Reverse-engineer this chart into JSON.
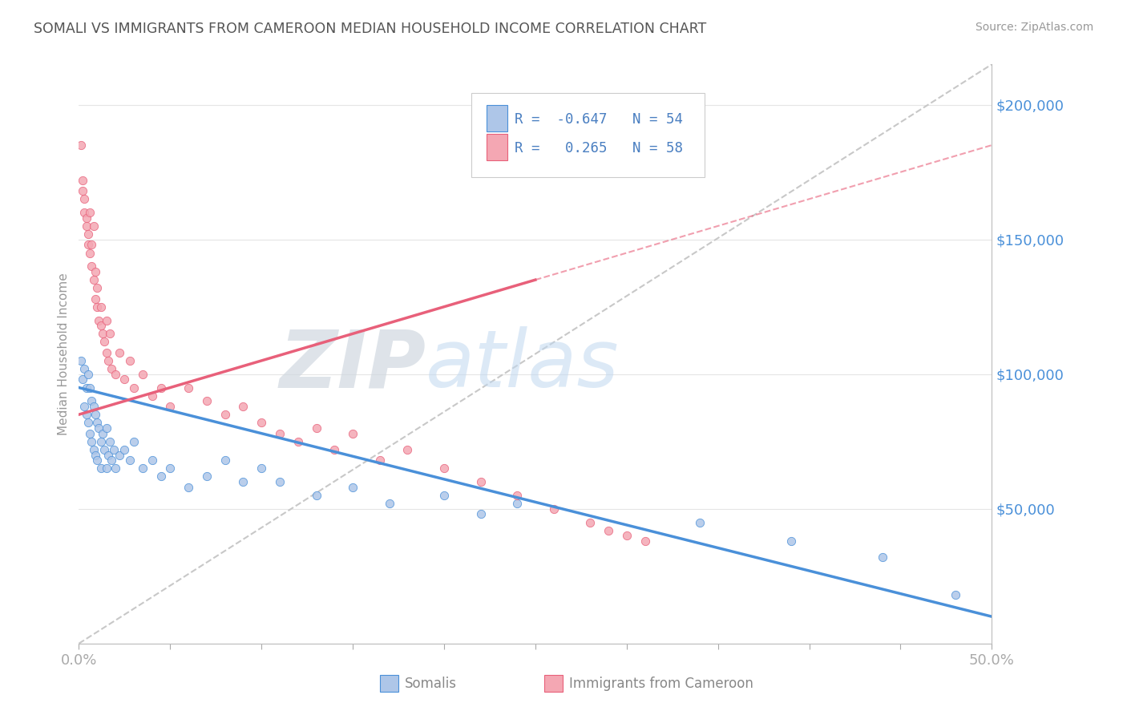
{
  "title": "SOMALI VS IMMIGRANTS FROM CAMEROON MEDIAN HOUSEHOLD INCOME CORRELATION CHART",
  "source": "Source: ZipAtlas.com",
  "ylabel": "Median Household Income",
  "xlim": [
    0.0,
    0.5
  ],
  "ylim": [
    0,
    215000
  ],
  "ytick_vals": [
    0,
    50000,
    100000,
    150000,
    200000
  ],
  "ytick_labels": [
    "",
    "$50,000",
    "$100,000",
    "$150,000",
    "$200,000"
  ],
  "xtick_vals": [
    0.0,
    0.05,
    0.1,
    0.15,
    0.2,
    0.25,
    0.3,
    0.35,
    0.4,
    0.45,
    0.5
  ],
  "somali_color": "#aec6e8",
  "cameroon_color": "#f4a7b3",
  "somali_line_color": "#4a90d9",
  "cameroon_line_color": "#e8607a",
  "ref_line_color": "#c8c8c8",
  "legend_R_somali": "-0.647",
  "legend_N_somali": "54",
  "legend_R_cameroon": "0.265",
  "legend_N_cameroon": "58",
  "legend_color": "#4a7fc1",
  "title_color": "#555555",
  "axis_color": "#bbbbbb",
  "tick_color": "#aaaaaa",
  "somali_x": [
    0.001,
    0.002,
    0.003,
    0.003,
    0.004,
    0.004,
    0.005,
    0.005,
    0.006,
    0.006,
    0.007,
    0.007,
    0.008,
    0.008,
    0.009,
    0.009,
    0.01,
    0.01,
    0.011,
    0.012,
    0.012,
    0.013,
    0.014,
    0.015,
    0.015,
    0.016,
    0.017,
    0.018,
    0.019,
    0.02,
    0.022,
    0.025,
    0.028,
    0.03,
    0.035,
    0.04,
    0.045,
    0.05,
    0.06,
    0.07,
    0.08,
    0.09,
    0.1,
    0.11,
    0.13,
    0.15,
    0.17,
    0.2,
    0.22,
    0.24,
    0.34,
    0.39,
    0.44,
    0.48
  ],
  "somali_y": [
    105000,
    98000,
    102000,
    88000,
    95000,
    85000,
    100000,
    82000,
    95000,
    78000,
    90000,
    75000,
    88000,
    72000,
    85000,
    70000,
    82000,
    68000,
    80000,
    75000,
    65000,
    78000,
    72000,
    80000,
    65000,
    70000,
    75000,
    68000,
    72000,
    65000,
    70000,
    72000,
    68000,
    75000,
    65000,
    68000,
    62000,
    65000,
    58000,
    62000,
    68000,
    60000,
    65000,
    60000,
    55000,
    58000,
    52000,
    55000,
    48000,
    52000,
    45000,
    38000,
    32000,
    18000
  ],
  "cameroon_x": [
    0.001,
    0.002,
    0.002,
    0.003,
    0.003,
    0.004,
    0.004,
    0.005,
    0.005,
    0.006,
    0.006,
    0.007,
    0.007,
    0.008,
    0.008,
    0.009,
    0.009,
    0.01,
    0.01,
    0.011,
    0.012,
    0.012,
    0.013,
    0.014,
    0.015,
    0.015,
    0.016,
    0.017,
    0.018,
    0.02,
    0.022,
    0.025,
    0.028,
    0.03,
    0.035,
    0.04,
    0.045,
    0.05,
    0.06,
    0.07,
    0.08,
    0.09,
    0.1,
    0.11,
    0.12,
    0.13,
    0.14,
    0.15,
    0.165,
    0.18,
    0.2,
    0.22,
    0.24,
    0.26,
    0.28,
    0.29,
    0.3,
    0.31
  ],
  "cameroon_y": [
    185000,
    168000,
    172000,
    160000,
    165000,
    158000,
    155000,
    152000,
    148000,
    145000,
    160000,
    140000,
    148000,
    135000,
    155000,
    128000,
    138000,
    125000,
    132000,
    120000,
    118000,
    125000,
    115000,
    112000,
    108000,
    120000,
    105000,
    115000,
    102000,
    100000,
    108000,
    98000,
    105000,
    95000,
    100000,
    92000,
    95000,
    88000,
    95000,
    90000,
    85000,
    88000,
    82000,
    78000,
    75000,
    80000,
    72000,
    78000,
    68000,
    72000,
    65000,
    60000,
    55000,
    50000,
    45000,
    42000,
    40000,
    38000
  ],
  "somali_trend_x0": 0.0,
  "somali_trend_y0": 95000,
  "somali_trend_x1": 0.5,
  "somali_trend_y1": 10000,
  "cameroon_trend_x0": 0.0,
  "cameroon_trend_y0": 85000,
  "cameroon_trend_x1": 0.25,
  "cameroon_trend_y1": 135000
}
